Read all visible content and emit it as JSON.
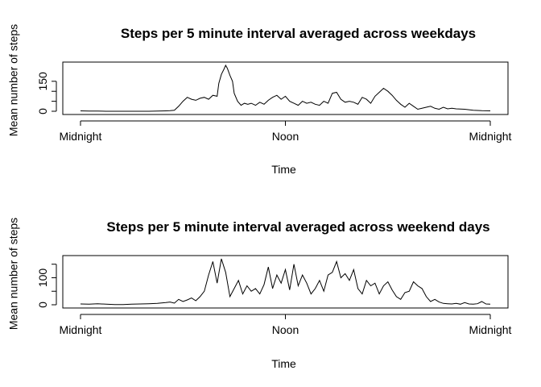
{
  "chart_data": [
    {
      "type": "line",
      "title": "Steps per 5 minute interval averaged across weekdays",
      "xlabel": "Time",
      "ylabel": "Mean number of steps",
      "x_ticks": [
        "Midnight",
        "Noon",
        "Midnight"
      ],
      "x_tick_hours": [
        0,
        12,
        24
      ],
      "y_ticks": [
        0,
        50,
        100,
        150
      ],
      "y_tick_labels": [
        "0",
        "",
        "",
        "150"
      ],
      "xlim": [
        0,
        24
      ],
      "ylim": [
        0,
        230
      ],
      "grid": false,
      "series": [
        {
          "x": [
            0,
            0.5,
            1,
            1.5,
            2,
            2.5,
            3,
            3.5,
            4,
            4.5,
            5,
            5.25,
            5.5,
            5.75,
            6,
            6.25,
            6.5,
            6.75,
            7,
            7.25,
            7.5,
            7.75,
            8,
            8.1,
            8.25,
            8.4,
            8.5,
            8.6,
            8.75,
            8.9,
            9,
            9.2,
            9.4,
            9.6,
            9.8,
            10,
            10.25,
            10.5,
            10.75,
            11,
            11.25,
            11.5,
            11.75,
            12,
            12.25,
            12.5,
            12.75,
            13,
            13.25,
            13.5,
            13.75,
            14,
            14.25,
            14.5,
            14.75,
            15,
            15.25,
            15.5,
            15.75,
            16,
            16.25,
            16.5,
            16.75,
            17,
            17.25,
            17.5,
            17.75,
            18,
            18.25,
            18.5,
            18.75,
            19,
            19.25,
            19.5,
            19.75,
            20,
            20.25,
            20.5,
            20.75,
            21,
            21.25,
            21.5,
            21.75,
            22,
            22.5,
            23,
            23.5,
            24
          ],
          "y": [
            2,
            1,
            1,
            0,
            0,
            0,
            0,
            0,
            0,
            1,
            2,
            3,
            5,
            25,
            50,
            70,
            60,
            55,
            65,
            70,
            60,
            80,
            75,
            140,
            185,
            210,
            230,
            215,
            180,
            150,
            90,
            50,
            30,
            40,
            35,
            40,
            30,
            45,
            35,
            55,
            70,
            80,
            60,
            75,
            50,
            40,
            30,
            50,
            40,
            45,
            35,
            30,
            50,
            40,
            90,
            95,
            60,
            45,
            50,
            45,
            35,
            70,
            60,
            40,
            75,
            95,
            115,
            100,
            80,
            55,
            35,
            20,
            40,
            25,
            10,
            15,
            20,
            25,
            15,
            10,
            20,
            12,
            15,
            12,
            10,
            5,
            3,
            2
          ]
        }
      ]
    },
    {
      "type": "line",
      "title": "Steps per 5 minute interval averaged across weekend days",
      "xlabel": "Time",
      "ylabel": "Mean number of steps",
      "x_ticks": [
        "Midnight",
        "Noon",
        "Midnight"
      ],
      "x_tick_hours": [
        0,
        12,
        24
      ],
      "y_ticks": [
        0,
        50,
        100,
        150
      ],
      "y_tick_labels": [
        "0",
        "",
        "100",
        ""
      ],
      "xlim": [
        0,
        24
      ],
      "ylim": [
        0,
        170
      ],
      "grid": false,
      "series": [
        {
          "x": [
            0,
            0.5,
            1,
            1.5,
            2,
            2.5,
            3,
            3.5,
            4,
            4.5,
            5,
            5.25,
            5.5,
            5.75,
            6,
            6.25,
            6.5,
            6.75,
            7,
            7.25,
            7.5,
            7.75,
            8,
            8.25,
            8.5,
            8.75,
            9,
            9.25,
            9.5,
            9.75,
            10,
            10.25,
            10.5,
            10.75,
            11,
            11.25,
            11.5,
            11.75,
            12,
            12.25,
            12.5,
            12.75,
            13,
            13.25,
            13.5,
            13.75,
            14,
            14.25,
            14.5,
            14.75,
            15,
            15.25,
            15.5,
            15.75,
            16,
            16.25,
            16.5,
            16.75,
            17,
            17.25,
            17.5,
            17.75,
            18,
            18.25,
            18.5,
            18.75,
            19,
            19.25,
            19.5,
            19.75,
            20,
            20.25,
            20.5,
            20.75,
            21,
            21.25,
            21.5,
            21.75,
            22,
            22.25,
            22.5,
            22.75,
            23,
            23.25,
            23.5,
            23.75,
            24
          ],
          "y": [
            3,
            2,
            4,
            2,
            1,
            1,
            2,
            3,
            4,
            5,
            8,
            10,
            6,
            20,
            12,
            18,
            25,
            15,
            30,
            50,
            110,
            160,
            80,
            170,
            120,
            30,
            60,
            90,
            40,
            70,
            50,
            60,
            40,
            75,
            140,
            60,
            110,
            80,
            130,
            55,
            150,
            70,
            110,
            80,
            40,
            60,
            90,
            50,
            110,
            120,
            160,
            100,
            115,
            90,
            130,
            60,
            40,
            90,
            70,
            80,
            40,
            70,
            85,
            55,
            30,
            20,
            45,
            50,
            85,
            70,
            60,
            30,
            12,
            20,
            10,
            5,
            4,
            3,
            5,
            2,
            8,
            3,
            2,
            4,
            12,
            3,
            2
          ]
        }
      ]
    }
  ]
}
